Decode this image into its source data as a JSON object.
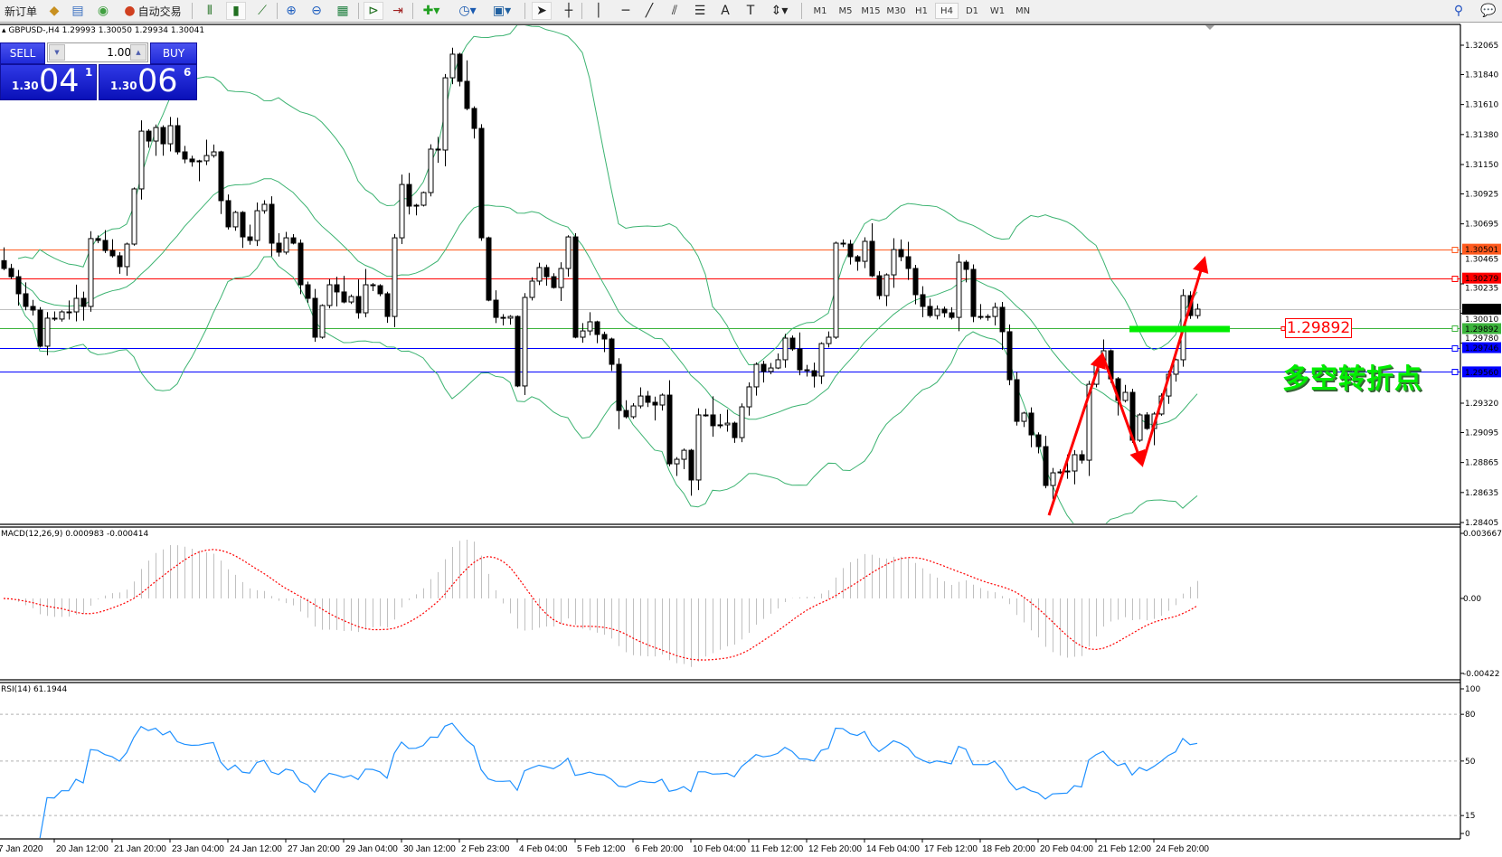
{
  "toolbar": {
    "new_order_label": "新订单",
    "auto_trading_label": "自动交易",
    "icons": [
      "new-order-icon",
      "history-center-icon",
      "profiles-icon",
      "signals-icon",
      "auto-trading-icon",
      "bar-chart-icon",
      "candlestick-icon",
      "line-chart-icon",
      "zoom-in-icon",
      "zoom-out-icon",
      "tile-windows-icon",
      "auto-scroll-icon",
      "chart-shift-icon",
      "indicators-icon",
      "periods-icon",
      "templates-icon",
      "cursor-icon",
      "crosshair-icon",
      "vertical-line-icon",
      "horizontal-line-icon",
      "trendline-icon",
      "equidistant-channel-icon",
      "fibonacci-icon",
      "text-icon",
      "text-label-icon",
      "arrows-icon",
      "search-icon",
      "chat-icon"
    ],
    "timeframes": [
      "M1",
      "M5",
      "M15",
      "M30",
      "H1",
      "H4",
      "D1",
      "W1",
      "MN"
    ],
    "active_timeframe": "H4"
  },
  "chart_info": "GBPUSD-,H4  1.29993 1.30050 1.29934 1.30041",
  "trade_panel": {
    "sell_label": "SELL",
    "buy_label": "BUY",
    "lot": "1.00",
    "sell_price": {
      "prefix": "1.30",
      "big": "04",
      "sup": "1"
    },
    "buy_price": {
      "prefix": "1.30",
      "big": "06",
      "sup": "6"
    }
  },
  "annotation": {
    "price_box": "1.29892",
    "text": "多空转折点",
    "arrow_color": "#ff0000",
    "marker_color": "#00ee00"
  },
  "macd_label": "MACD(12,26,9) 0.000983 -0.000414",
  "rsi_label": "RSI(14) 61.1944",
  "chart_data": {
    "type": "candlestick",
    "symbol": "GBPUSD-",
    "timeframe": "H4",
    "ylim": [
      1.28405,
      1.32065
    ],
    "price_ticks": [
      "1.32065",
      "1.31840",
      "1.31610",
      "1.31380",
      "1.31150",
      "1.30925",
      "1.30695",
      "1.30465",
      "1.30235",
      "1.30010",
      "1.29780",
      "1.29320",
      "1.29095",
      "1.28865",
      "1.28635",
      "1.28405"
    ],
    "time_labels": [
      "7 Jan 2020",
      "20 Jan 12:00",
      "21 Jan 20:00",
      "23 Jan 04:00",
      "24 Jan 12:00",
      "27 Jan 20:00",
      "29 Jan 04:00",
      "30 Jan 12:00",
      "2 Feb 23:00",
      "4 Feb 04:00",
      "5 Feb 12:00",
      "6 Feb 20:00",
      "10 Feb 04:00",
      "11 Feb 12:00",
      "12 Feb 20:00",
      "14 Feb 04:00",
      "17 Feb 12:00",
      "18 Feb 20:00",
      "20 Feb 04:00",
      "21 Feb 12:00",
      "24 Feb 20:00"
    ],
    "close": [
      1.30353,
      1.3029,
      1.30159,
      1.30062,
      1.30034,
      1.29757,
      1.29972,
      1.29965,
      1.3002,
      1.3002,
      1.30124,
      1.30062,
      1.30582,
      1.30568,
      1.30491,
      1.3045,
      1.30367,
      1.3054,
      1.30963,
      1.31406,
      1.3133,
      1.31434,
      1.31309,
      1.31448,
      1.31247,
      1.31192,
      1.31171,
      1.31178,
      1.31219,
      1.31247,
      1.30873,
      1.30672,
      1.30783,
      1.30595,
      1.30568,
      1.30796,
      1.30845,
      1.30547,
      1.30478,
      1.30588,
      1.30547,
      1.30228,
      1.30124,
      1.29826,
      1.30069,
      1.30228,
      1.30173,
      1.30096,
      1.30138,
      1.30013,
      1.30228,
      1.30221,
      1.30159,
      1.29985,
      1.30588,
      1.30997,
      1.30831,
      1.30838,
      1.30935,
      1.31268,
      1.31261,
      1.31815,
      1.31996,
      1.31788,
      1.3158,
      1.31427,
      1.30588,
      1.3011,
      1.29978,
      1.29972,
      1.29985,
      1.29452,
      1.30131,
      1.30256,
      1.3036,
      1.3029,
      1.30207,
      1.30353,
      1.30595,
      1.29826,
      1.29874,
      1.29944,
      1.29847,
      1.29812,
      1.29618,
      1.29264,
      1.29216,
      1.29299,
      1.29375,
      1.29327,
      1.29306,
      1.29382,
      1.28855,
      1.2889,
      1.28959,
      1.28731,
      1.2923,
      1.2923,
      1.29147,
      1.29154,
      1.29167,
      1.29056,
      1.29292,
      1.29445,
      1.29618,
      1.29563,
      1.2959,
      1.29653,
      1.29819,
      1.29736,
      1.29576,
      1.29569,
      1.29528,
      1.29777,
      1.29826,
      1.30547,
      1.3054,
      1.30443,
      1.30408,
      1.30561,
      1.30297,
      1.30145,
      1.30304,
      1.30498,
      1.30443,
      1.30353,
      1.30152,
      1.30062,
      1.29992,
      1.30041,
      1.30013,
      1.29978,
      1.30401,
      1.30346,
      1.29985,
      1.29985,
      1.29985,
      1.30055,
      1.29868,
      1.295,
      1.29181,
      1.29244,
      1.29077,
      1.28987,
      1.28689,
      1.28786,
      1.28793,
      1.288,
      1.28925,
      1.28883,
      1.29465,
      1.29618,
      1.29722,
      1.29507,
      1.29341,
      1.29403,
      1.29036,
      1.2923,
      1.29126,
      1.29237,
      1.29375,
      1.29542,
      1.29653,
      1.30145,
      1.29992,
      1.30041
    ],
    "indicators": {
      "bollinger_bands": {
        "color": "#3cb371"
      },
      "macd": {
        "params": "12,26,9",
        "main": 0.000983,
        "signal": -0.000414,
        "ylim": [
          -0.00422,
          0.003667
        ],
        "ticks": [
          "0.003667",
          "0.00",
          "-0.00422"
        ],
        "histogram_color": "#c0c0c0",
        "signal_color": "#ff0000"
      },
      "rsi": {
        "period": 14,
        "value": 61.1944,
        "ticks": [
          "100",
          "80",
          "50",
          "15",
          "0"
        ],
        "levels": [
          80,
          50,
          15
        ],
        "color": "#1e90ff"
      }
    },
    "horizontal_lines": [
      {
        "price": "1.30501",
        "color": "#ff5a1e"
      },
      {
        "price": "1.30279",
        "color": "#ff0000"
      },
      {
        "price": "1.30041",
        "color": "#c0c0c0",
        "label_bg": "#000000",
        "current": true
      },
      {
        "price": "1.29892",
        "color": "#3cb43c"
      },
      {
        "price": "1.29746",
        "color": "#0000ff"
      },
      {
        "price": "1.29560",
        "color": "#0000ff"
      }
    ]
  }
}
